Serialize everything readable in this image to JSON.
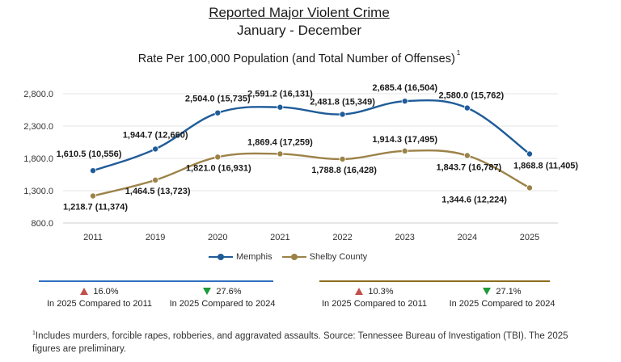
{
  "chart_data": {
    "type": "line",
    "title": "Reported Major Violent Crime",
    "subtitle": "January - December",
    "measure": "Rate Per 100,000 Population (and Total Number of Offenses)",
    "measure_note_marker": "1",
    "categories": [
      "2011",
      "2019",
      "2020",
      "2021",
      "2022",
      "2023",
      "2024",
      "2025"
    ],
    "y_ticks": [
      "800.0",
      "1,300.0",
      "1,800.0",
      "2,300.0",
      "2,800.0"
    ],
    "ylim": [
      800,
      2800
    ],
    "grid": "horizontal",
    "legend_position": "bottom",
    "series": [
      {
        "name": "Memphis",
        "color": "#1f5c99",
        "values": [
          1610.5,
          1944.7,
          2504.0,
          2591.2,
          2481.8,
          2685.4,
          2580.0,
          1868.8
        ],
        "labels": [
          "1,610.5 (10,556)",
          "1,944.7 (12,660)",
          "2,504.0 (15,735)",
          "2,591.2 (16,131)",
          "2,481.8 (15,349)",
          "2,685.4 (16,504)",
          "2,580.0 (15,762)",
          "1,868.8 (11,405)"
        ]
      },
      {
        "name": "Shelby County",
        "color": "#9c8248",
        "values": [
          1218.7,
          1464.5,
          1821.0,
          1869.4,
          1788.8,
          1914.3,
          1843.7,
          1344.6
        ],
        "labels": [
          "1,218.7 (11,374)",
          "1,464.5 (13,723)",
          "1,821.0 (16,931)",
          "1,869.4 (17,259)",
          "1,788.8 (16,428)",
          "1,914.3 (17,495)",
          "1,843.7 (16,787)",
          "1,344.6 (12,224)"
        ]
      }
    ]
  },
  "summary": {
    "memphis": {
      "color": "#2f6fbf",
      "vs_2011": {
        "value": "16.0%",
        "direction": "up",
        "text": "In 2025 Compared to 2011"
      },
      "vs_2024": {
        "value": "27.6%",
        "direction": "down",
        "text": "In 2025 Compared to 2024"
      }
    },
    "shelby": {
      "color": "#8a6d1c",
      "vs_2011": {
        "value": "10.3%",
        "direction": "up",
        "text": "In 2025 Compared to 2011"
      },
      "vs_2024": {
        "value": "27.1%",
        "direction": "down",
        "text": "In 2025 Compared to 2024"
      }
    }
  },
  "footnote": {
    "marker": "1",
    "text": "Includes murders, forcible rapes, robberies, and aggravated assaults. Source: Tennessee Bureau of Investigation (TBI). The 2025 figures are preliminary."
  }
}
